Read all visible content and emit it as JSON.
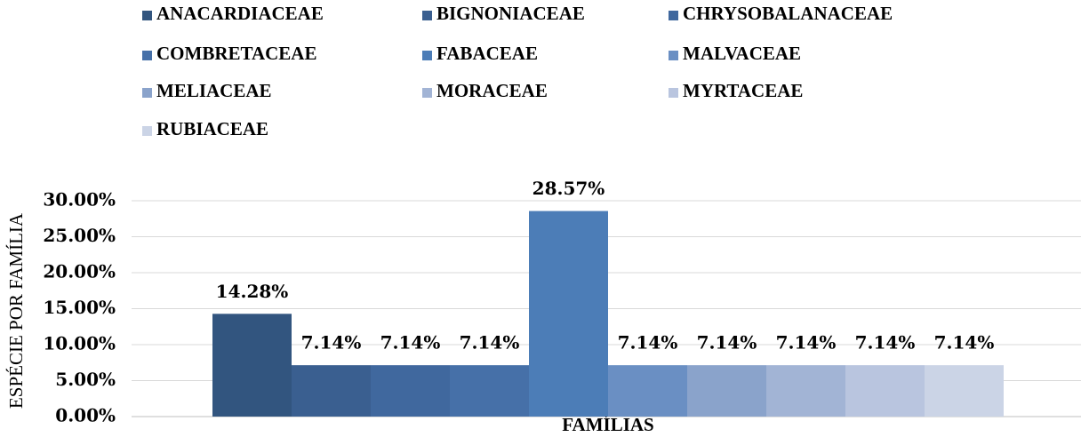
{
  "chart_data": {
    "type": "bar",
    "y_label": "ESPÉCIE POR FAMÍLIA",
    "categories": [
      "FAMÍLIAS"
    ],
    "series": [
      {
        "name": "ANACARDIACEAE",
        "color": "#32557f",
        "values": [
          14.28
        ],
        "value_labels": [
          "14.28%"
        ]
      },
      {
        "name": "BIGNONIACEAE",
        "color": "#3a5f90",
        "values": [
          7.14
        ],
        "value_labels": [
          "7.14%"
        ]
      },
      {
        "name": "CHRYSOBALANACEAE",
        "color": "#40689e",
        "values": [
          7.14
        ],
        "value_labels": [
          "7.14%"
        ]
      },
      {
        "name": "COMBRETACEAE",
        "color": "#4670a8",
        "values": [
          7.14
        ],
        "value_labels": [
          "7.14%"
        ]
      },
      {
        "name": "FABACEAE",
        "color": "#4c7db7",
        "values": [
          28.57
        ],
        "value_labels": [
          "28.57%"
        ]
      },
      {
        "name": "MALVACEAE",
        "color": "#6a8fc3",
        "values": [
          7.14
        ],
        "value_labels": [
          "7.14%"
        ]
      },
      {
        "name": "MELIACEAE",
        "color": "#8aa3cb",
        "values": [
          7.14
        ],
        "value_labels": [
          "7.14%"
        ]
      },
      {
        "name": "MORACEAE",
        "color": "#a2b4d5",
        "values": [
          7.14
        ],
        "value_labels": [
          "7.14%"
        ]
      },
      {
        "name": "MYRTACEAE",
        "color": "#b9c5df",
        "values": [
          7.14
        ],
        "value_labels": [
          "7.14%"
        ]
      },
      {
        "name": "RUBIACEAE",
        "color": "#cbd4e6",
        "values": [
          7.14
        ],
        "value_labels": [
          "7.14%"
        ]
      }
    ],
    "ylim": [
      0,
      30
    ],
    "yticks": [
      {
        "value": 0,
        "label": "0.00%"
      },
      {
        "value": 5,
        "label": "5.00%"
      },
      {
        "value": 10,
        "label": "10.00%"
      },
      {
        "value": 15,
        "label": "15.00%"
      },
      {
        "value": 20,
        "label": "20.00%"
      },
      {
        "value": 25,
        "label": "25.00%"
      },
      {
        "value": 30,
        "label": "30.00%"
      }
    ],
    "grid": true,
    "legend": "top"
  }
}
